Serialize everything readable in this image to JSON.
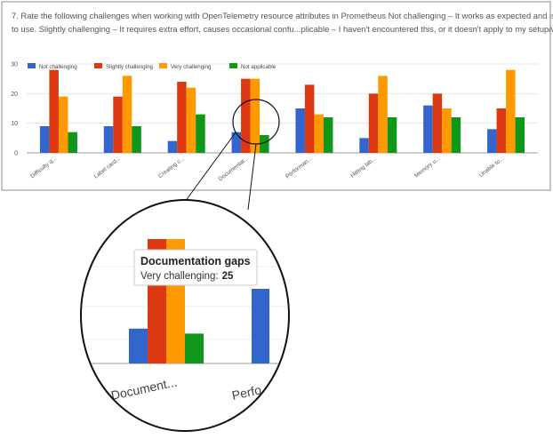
{
  "question": {
    "line1": "7. Rate the following challenges when working with OpenTelemetry resource attributes in Prometheus    Not challenging – It works as expected and is easy",
    "line2": "to use.  Slightly challenging – It requires extra effort, causes occasional confu...plicable – I haven't encountered this, or it doesn't apply to my setup/workflow."
  },
  "chart_data": {
    "type": "bar",
    "categories": [
      "Difficulty q...",
      "Label card...",
      "Creating c...",
      "Documentat...",
      "Performan...",
      "Hitting lab...",
      "Memory u...",
      "Unable to..."
    ],
    "series": [
      {
        "name": "Not challenging",
        "color": "#3366cc",
        "values": [
          9,
          9,
          4,
          7,
          15,
          5,
          16,
          8
        ]
      },
      {
        "name": "Slightly challenging",
        "color": "#dc3912",
        "values": [
          28,
          19,
          24,
          25,
          23,
          20,
          20,
          15
        ]
      },
      {
        "name": "Very challenging",
        "color": "#ff9900",
        "values": [
          19,
          26,
          22,
          25,
          13,
          26,
          15,
          28
        ]
      },
      {
        "name": "Not applicable",
        "color": "#109618",
        "values": [
          7,
          9,
          13,
          6,
          12,
          12,
          12,
          12
        ]
      }
    ],
    "yticks": [
      "0",
      "10",
      "20",
      "30"
    ],
    "ylim": [
      0,
      30
    ],
    "grid": true,
    "legend_position": "top-left"
  },
  "zoom": {
    "category_label": "Document...",
    "next_label": "Perfo",
    "tooltip": {
      "title": "Documentation gaps",
      "series_label": "Very challenging:",
      "value": "25"
    }
  }
}
